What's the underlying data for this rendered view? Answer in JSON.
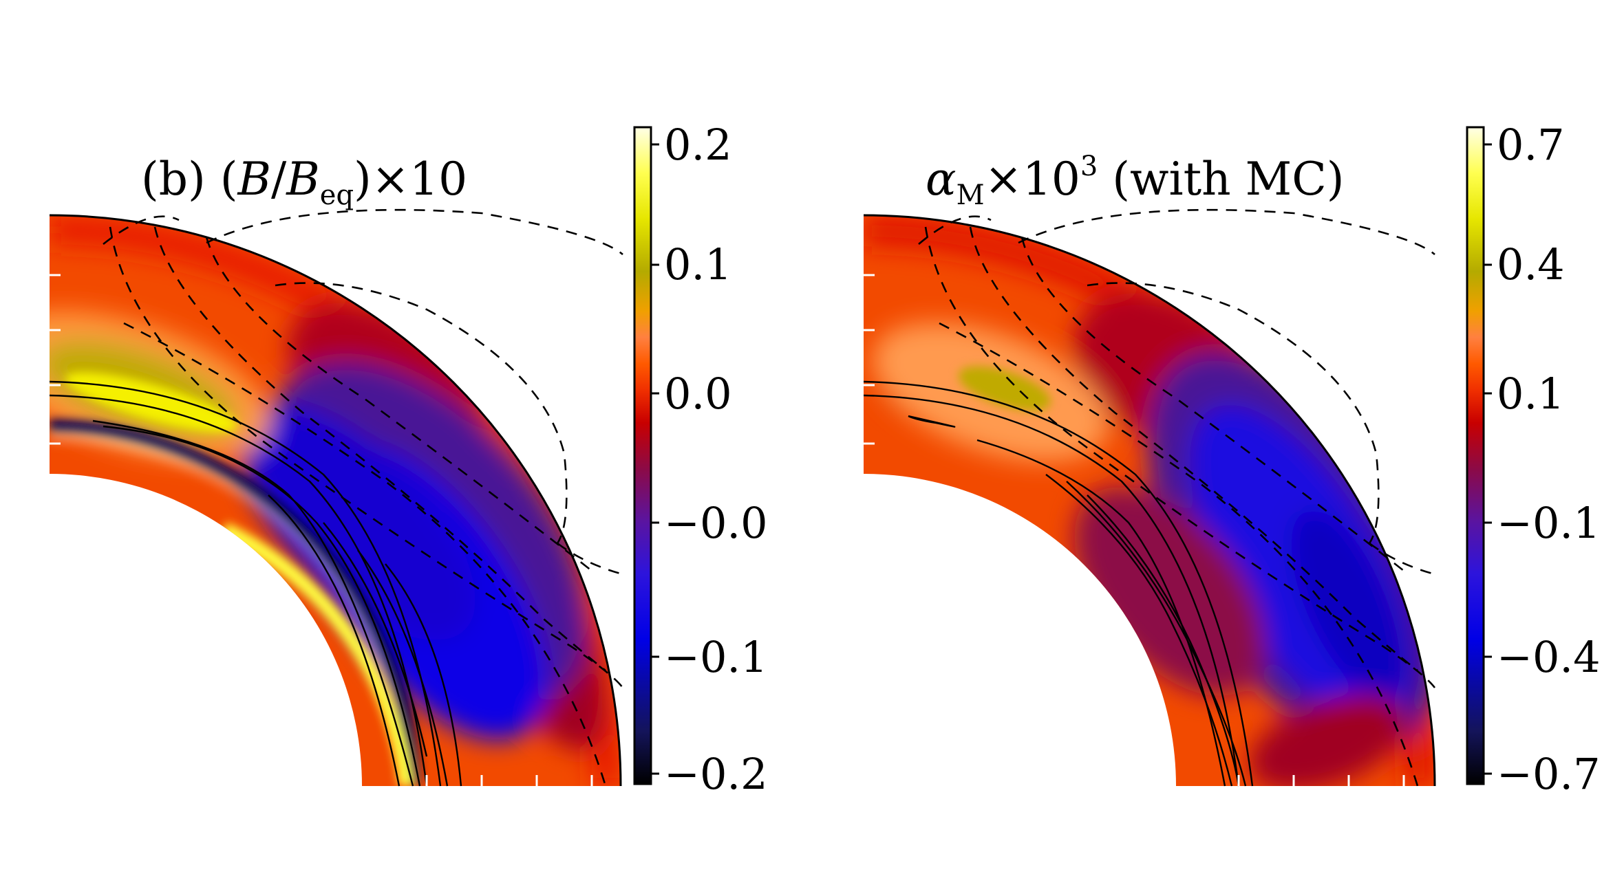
{
  "chart_data": [
    {
      "type": "heatmap",
      "title": "(b) (B/B_eq)×10",
      "title_parts": {
        "prefix": "(b) (",
        "var": "B",
        "slash": "/",
        "var2": "B",
        "sub": "eq",
        "suffix": ")×10"
      },
      "colorbar": {
        "ticks": [
          "0.2",
          "0.1",
          "0.0",
          "−0.0",
          "−0.1",
          "−0.2"
        ],
        "range": [
          -0.2,
          0.2
        ]
      },
      "domain": "meridional quarter shell",
      "contours": {
        "solid": "positive",
        "dashed": "negative"
      }
    },
    {
      "type": "heatmap",
      "title": "αM×10^3 (with MC)",
      "title_parts": {
        "var": "α",
        "sub": "M",
        "mid": "×10",
        "sup": "3",
        "suffix": " (with MC)"
      },
      "colorbar": {
        "ticks": [
          "0.7",
          "0.4",
          "0.1",
          "−0.1",
          "−0.4",
          "−0.7"
        ],
        "range": [
          -0.7,
          0.7
        ]
      },
      "domain": "meridional quarter shell",
      "contours": {
        "solid": "positive",
        "dashed": "negative"
      }
    }
  ],
  "colors": {
    "colormap": [
      "#000000",
      "#14145a",
      "#0000e6",
      "#2d14dc",
      "#5a14a0",
      "#8c0a46",
      "#c80000",
      "#f03000",
      "#ff5a00",
      "#ff8040",
      "#f0a000",
      "#b4aa00",
      "#e6e600",
      "#ffff50",
      "#ffffe6"
    ]
  }
}
